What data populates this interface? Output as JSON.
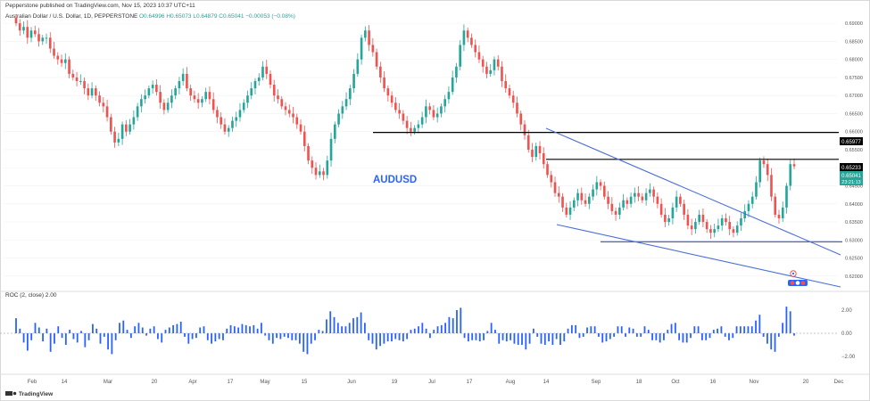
{
  "header": {
    "published": "Pepperstone published on TradingView.com, Nov 15, 2023 10:37 UTC+11",
    "symbol": "Australian Dollar / U.S. Dollar, 1D, PEPPERSTONE",
    "ohlc": "O0.64996  H0.65073  L0.64879  C0.65041  −0.00053 (−0.08%)"
  },
  "annotations": {
    "pair_label": "AUDUSD"
  },
  "price_tags": {
    "top_line": "0.65977",
    "mid_line": "0.65233",
    "last_price": "0.65041",
    "countdown": "23:21:13"
  },
  "indicator": {
    "label": "ROC (2, close)  2.00",
    "ticks": [
      "2.00",
      "0.00",
      "−2.00"
    ]
  },
  "footer": {
    "brand": "TradingView"
  },
  "x_axis_labels": [
    "Feb",
    "14",
    "Mar",
    "20",
    "Apr",
    "17",
    "May",
    "15",
    "Jun",
    "19",
    "Jul",
    "17",
    "Aug",
    "14",
    "Sep",
    "18",
    "Oct",
    "16",
    "Nov",
    "20",
    "Dec"
  ],
  "colors": {
    "up": "#26a69a",
    "down": "#ef5350",
    "trend_line": "#4a6fd8",
    "level_line": "#000000",
    "roc_bar": "#2962ff",
    "label_blue": "#2962ff",
    "last_tag": "#26a69a"
  },
  "chart_data": {
    "type": "candlestick",
    "y_axis_ticks": [
      0.69,
      0.685,
      0.68,
      0.675,
      0.67,
      0.665,
      0.66,
      0.655,
      0.65,
      0.645,
      0.64,
      0.635,
      0.63,
      0.625,
      0.62
    ],
    "ylim": [
      0.617,
      0.6925
    ],
    "approx_closes": [
      0.69,
      0.688,
      0.689,
      0.686,
      0.688,
      0.687,
      0.685,
      0.686,
      0.686,
      0.683,
      0.681,
      0.68,
      0.679,
      0.68,
      0.676,
      0.675,
      0.674,
      0.674,
      0.672,
      0.67,
      0.672,
      0.67,
      0.668,
      0.667,
      0.664,
      0.66,
      0.657,
      0.658,
      0.662,
      0.66,
      0.662,
      0.664,
      0.667,
      0.669,
      0.67,
      0.672,
      0.673,
      0.671,
      0.668,
      0.666,
      0.668,
      0.67,
      0.672,
      0.674,
      0.676,
      0.672,
      0.67,
      0.669,
      0.668,
      0.669,
      0.671,
      0.669,
      0.666,
      0.664,
      0.662,
      0.66,
      0.661,
      0.663,
      0.664,
      0.666,
      0.668,
      0.67,
      0.672,
      0.674,
      0.675,
      0.678,
      0.676,
      0.673,
      0.67,
      0.669,
      0.667,
      0.666,
      0.665,
      0.664,
      0.662,
      0.66,
      0.656,
      0.652,
      0.65,
      0.648,
      0.649,
      0.648,
      0.652,
      0.658,
      0.662,
      0.665,
      0.667,
      0.669,
      0.672,
      0.676,
      0.68,
      0.686,
      0.688,
      0.684,
      0.682,
      0.678,
      0.675,
      0.672,
      0.67,
      0.668,
      0.666,
      0.665,
      0.663,
      0.661,
      0.66,
      0.661,
      0.662,
      0.664,
      0.667,
      0.666,
      0.664,
      0.665,
      0.667,
      0.669,
      0.671,
      0.675,
      0.678,
      0.684,
      0.688,
      0.686,
      0.684,
      0.682,
      0.68,
      0.678,
      0.676,
      0.677,
      0.68,
      0.678,
      0.674,
      0.672,
      0.67,
      0.668,
      0.665,
      0.662,
      0.659,
      0.655,
      0.653,
      0.656,
      0.654,
      0.651,
      0.648,
      0.646,
      0.643,
      0.642,
      0.639,
      0.637,
      0.639,
      0.641,
      0.643,
      0.641,
      0.64,
      0.642,
      0.644,
      0.646,
      0.645,
      0.642,
      0.64,
      0.638,
      0.637,
      0.639,
      0.641,
      0.64,
      0.642,
      0.643,
      0.642,
      0.641,
      0.643,
      0.644,
      0.642,
      0.64,
      0.637,
      0.635,
      0.636,
      0.639,
      0.642,
      0.64,
      0.637,
      0.634,
      0.633,
      0.635,
      0.637,
      0.635,
      0.633,
      0.632,
      0.633,
      0.634,
      0.636,
      0.635,
      0.633,
      0.632,
      0.634,
      0.636,
      0.638,
      0.64,
      0.642,
      0.646,
      0.652,
      0.651,
      0.648,
      0.642,
      0.637,
      0.636,
      0.639,
      0.645,
      0.651,
      0.6504
    ],
    "levels": [
      {
        "name": "resistance",
        "price": 0.65977
      },
      {
        "name": "resistance",
        "price": 0.65233
      },
      {
        "name": "support",
        "price": 0.6295
      }
    ],
    "roc": {
      "name": "ROC (2, close)",
      "ylim": [
        -3.2,
        3.2
      ],
      "values": [
        1.3,
        0.4,
        -0.8,
        -1.5,
        -0.6,
        0.9,
        0.5,
        -0.7,
        0.4,
        -1.6,
        -0.9,
        0.6,
        -0.4,
        -1.0,
        0.3,
        -0.5,
        -0.8,
        0.2,
        -1.2,
        -0.6,
        0.8,
        0.4,
        -0.9,
        -0.3,
        -1.4,
        -1.8,
        -0.6,
        0.9,
        1.1,
        0.3,
        -0.4,
        0.6,
        0.9,
        0.5,
        -0.2,
        0.4,
        0.6,
        -0.5,
        -0.8,
        0.3,
        0.5,
        0.7,
        0.8,
        1.0,
        -0.3,
        -0.9,
        -0.5,
        -0.4,
        0.5,
        0.6,
        -0.6,
        -0.9,
        -0.7,
        -0.5,
        -0.6,
        0.4,
        0.7,
        0.6,
        0.5,
        0.8,
        0.7,
        0.6,
        0.7,
        0.4,
        0.9,
        -0.2,
        -0.6,
        -0.9,
        -0.4,
        -0.5,
        -0.3,
        -0.4,
        -0.6,
        -0.6,
        -0.9,
        -1.6,
        -1.8,
        -0.9,
        -0.6,
        0.3,
        0.2,
        1.2,
        1.9,
        1.4,
        0.9,
        0.6,
        0.6,
        0.9,
        1.3,
        1.4,
        1.8,
        0.9,
        -0.6,
        -0.9,
        -1.4,
        -1.1,
        -0.9,
        -0.7,
        -0.7,
        -0.5,
        -0.6,
        -0.7,
        -0.5,
        0.3,
        0.4,
        0.6,
        0.9,
        0.4,
        -0.4,
        0.3,
        0.6,
        0.7,
        0.9,
        1.4,
        1.3,
        2.0,
        2.2,
        -0.4,
        -0.7,
        -0.6,
        -0.6,
        -0.7,
        -0.6,
        0.2,
        0.9,
        0.3,
        -0.9,
        -0.6,
        -0.7,
        -0.6,
        -0.9,
        -1.0,
        -1.0,
        -1.4,
        -0.9,
        0.4,
        -0.3,
        -0.9,
        -1.0,
        -0.7,
        -1.0,
        -0.5,
        -1.0,
        -0.7,
        0.4,
        0.7,
        0.7,
        -0.4,
        -0.3,
        0.5,
        0.6,
        0.6,
        -0.3,
        -0.8,
        -0.7,
        -0.5,
        -0.3,
        0.6,
        0.6,
        -0.3,
        0.5,
        0.4,
        -0.3,
        -0.3,
        0.6,
        0.3,
        -0.6,
        -0.6,
        -0.8,
        -0.6,
        0.3,
        0.8,
        0.9,
        -0.6,
        -0.8,
        -0.8,
        -0.4,
        0.6,
        0.6,
        -0.6,
        -0.6,
        -0.4,
        0.3,
        0.4,
        0.6,
        -0.3,
        -0.6,
        -0.4,
        0.6,
        0.6,
        0.6,
        0.6,
        0.6,
        1.1,
        1.6,
        -0.3,
        -0.9,
        -1.4,
        -1.6,
        -0.3,
        0.9,
        2.3,
        1.9,
        -0.2
      ]
    }
  }
}
